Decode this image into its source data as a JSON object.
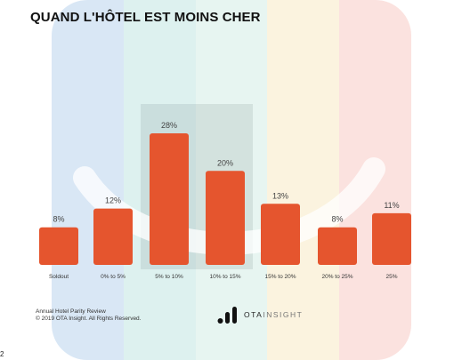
{
  "title": "QUAND L'HÔTEL EST MOINS CHER",
  "background_bands": [
    "#d9e7f5",
    "#ddf1ef",
    "#e7f5f1",
    "#fbf3df",
    "#fbe2df"
  ],
  "bar_color": "#e5552e",
  "chart_data": {
    "type": "bar",
    "title": "QUAND L'HÔTEL EST MOINS CHER",
    "categories": [
      "Soldout",
      "0% to 5%",
      "5% to 10%",
      "10% to 15%",
      "15% to 20%",
      "20% to 25%",
      "25%"
    ],
    "values": [
      8,
      12,
      28,
      20,
      13,
      8,
      11
    ],
    "value_labels": [
      "8%",
      "12%",
      "28%",
      "20%",
      "13%",
      "8%",
      "11%"
    ],
    "unit": "%",
    "ylim": [
      0,
      28
    ],
    "grid": false,
    "legend": "none",
    "highlighted_categories": [
      "5% to 10%",
      "10% to 15%"
    ]
  },
  "footer": {
    "source_line1": "Annual Hotel Parity Review",
    "source_line2": "© 2019 OTA Insight. All Rights Reserved."
  },
  "logo": {
    "icon": "ota-insight-bars-icon",
    "text_bold": "OTA",
    "text_light": "INSIGHT"
  },
  "page_number": "2"
}
